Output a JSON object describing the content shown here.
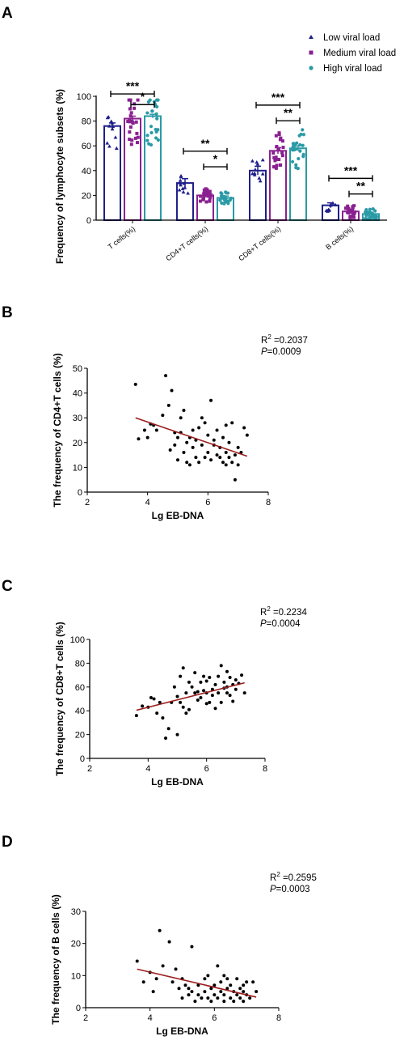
{
  "panels": {
    "A": {
      "letter": "A",
      "chart_data": {
        "type": "bar",
        "title": "",
        "ylabel": "Frequency of lymphocyte subsets (%)",
        "ylim": [
          0,
          100
        ],
        "yticks": [
          "0",
          "20",
          "40",
          "60",
          "80",
          "100"
        ],
        "categories": [
          "T cells(%)",
          "CD4+T cells(%)",
          "CD8+T cells(%)",
          "B cells(%)"
        ],
        "series": [
          {
            "name": "Low viral load",
            "color": "#1f1f8a",
            "marker": "triangle",
            "values": [
              76,
              30,
              40,
              12
            ],
            "sem": [
              2.5,
              3.5,
              3.5,
              2
            ]
          },
          {
            "name": "Medium viral load",
            "color": "#8a2090",
            "marker": "square",
            "values": [
              82,
              20,
              56,
              7
            ],
            "sem": [
              2,
              1.5,
              2.5,
              1
            ]
          },
          {
            "name": "High viral load",
            "color": "#2a9aa6",
            "marker": "circle",
            "values": [
              84,
              18,
              58,
              5
            ],
            "sem": [
              1.5,
              1.5,
              2,
              0.6
            ]
          }
        ],
        "significance": [
          {
            "category": "T cells(%)",
            "label": "***",
            "from": 0,
            "to": 2
          },
          {
            "category": "T cells(%)",
            "label": "*",
            "from": 1,
            "to": 2
          },
          {
            "category": "CD4+T cells(%)",
            "label": "**",
            "from": 0,
            "to": 2
          },
          {
            "category": "CD4+T cells(%)",
            "label": "*",
            "from": 1,
            "to": 2
          },
          {
            "category": "CD8+T cells(%)",
            "label": "***",
            "from": 0,
            "to": 2
          },
          {
            "category": "CD8+T cells(%)",
            "label": "**",
            "from": 1,
            "to": 2
          },
          {
            "category": "B cells(%)",
            "label": "***",
            "from": 0,
            "to": 2
          },
          {
            "category": "B cells(%)",
            "label": "**",
            "from": 1,
            "to": 2
          }
        ],
        "legend": "top-right"
      }
    },
    "B": {
      "letter": "B",
      "r2_label": "R",
      "r2_sup": "2",
      "r2_value": " =0.2037",
      "p_label": "P",
      "p_value": "=0.0009",
      "chart_data": {
        "type": "scatter",
        "xlabel": "Lg EB-DNA",
        "ylabel": "The frequency of CD4+T cells (%)",
        "xlim": [
          2,
          8
        ],
        "ylim": [
          0,
          50
        ],
        "xticks": [
          "2",
          "4",
          "6",
          "8"
        ],
        "yticks": [
          "0",
          "10",
          "20",
          "30",
          "40",
          "50"
        ],
        "fit": {
          "x": [
            3.6,
            7.3
          ],
          "y": [
            30,
            14.5
          ],
          "color": "#9b1c1c"
        },
        "points": [
          [
            3.6,
            43.5
          ],
          [
            3.7,
            21.5
          ],
          [
            3.9,
            25
          ],
          [
            4.0,
            22
          ],
          [
            4.1,
            27.5
          ],
          [
            4.2,
            27
          ],
          [
            4.3,
            25
          ],
          [
            4.5,
            31
          ],
          [
            4.6,
            47
          ],
          [
            4.7,
            35
          ],
          [
            4.75,
            17
          ],
          [
            4.8,
            41
          ],
          [
            4.9,
            24
          ],
          [
            4.9,
            19
          ],
          [
            5.0,
            22
          ],
          [
            5.1,
            30
          ],
          [
            5.1,
            24
          ],
          [
            5.2,
            33
          ],
          [
            5.2,
            16
          ],
          [
            5.3,
            20
          ],
          [
            5.3,
            12
          ],
          [
            5.4,
            22
          ],
          [
            5.5,
            18
          ],
          [
            5.5,
            25
          ],
          [
            5.6,
            21
          ],
          [
            5.6,
            14
          ],
          [
            5.7,
            26
          ],
          [
            5.7,
            12
          ],
          [
            5.8,
            30
          ],
          [
            5.8,
            19
          ],
          [
            5.9,
            28
          ],
          [
            5.9,
            14
          ],
          [
            6.0,
            23
          ],
          [
            6.0,
            16
          ],
          [
            6.1,
            37
          ],
          [
            6.1,
            13
          ],
          [
            6.2,
            19
          ],
          [
            6.2,
            21
          ],
          [
            6.3,
            15
          ],
          [
            6.3,
            25
          ],
          [
            6.4,
            14
          ],
          [
            6.4,
            18
          ],
          [
            6.5,
            22
          ],
          [
            6.5,
            12
          ],
          [
            6.6,
            16
          ],
          [
            6.6,
            27
          ],
          [
            6.7,
            20
          ],
          [
            6.7,
            14
          ],
          [
            6.8,
            12
          ],
          [
            6.8,
            28
          ],
          [
            6.9,
            5
          ],
          [
            6.9,
            15
          ],
          [
            7.0,
            18
          ],
          [
            7.0,
            11
          ],
          [
            7.1,
            16
          ],
          [
            7.2,
            26
          ],
          [
            7.3,
            23
          ],
          [
            5.0,
            13
          ],
          [
            5.4,
            11
          ],
          [
            6.6,
            11
          ]
        ]
      }
    },
    "C": {
      "letter": "C",
      "r2_label": "R",
      "r2_sup": "2",
      "r2_value": " =0.2234",
      "p_label": "P",
      "p_value": "=0.0004",
      "chart_data": {
        "type": "scatter",
        "xlabel": "Lg EB-DNA",
        "ylabel": "The frequency of CD8+T cells (%)",
        "xlim": [
          2,
          8
        ],
        "ylim": [
          0,
          100
        ],
        "xticks": [
          "2",
          "4",
          "6",
          "8"
        ],
        "yticks": [
          "0",
          "20",
          "40",
          "60",
          "80",
          "100"
        ],
        "fit": {
          "x": [
            3.6,
            7.3
          ],
          "y": [
            40.5,
            63.5
          ],
          "color": "#9b1c1c"
        },
        "points": [
          [
            3.6,
            36
          ],
          [
            3.8,
            44
          ],
          [
            4.0,
            43
          ],
          [
            4.1,
            51
          ],
          [
            4.2,
            50
          ],
          [
            4.3,
            38
          ],
          [
            4.4,
            47
          ],
          [
            4.5,
            34
          ],
          [
            4.6,
            17
          ],
          [
            4.7,
            25
          ],
          [
            4.8,
            47
          ],
          [
            4.9,
            60
          ],
          [
            5.0,
            52
          ],
          [
            5.0,
            20
          ],
          [
            5.1,
            47
          ],
          [
            5.1,
            69
          ],
          [
            5.2,
            76
          ],
          [
            5.2,
            43
          ],
          [
            5.3,
            55
          ],
          [
            5.4,
            64
          ],
          [
            5.4,
            41
          ],
          [
            5.5,
            60
          ],
          [
            5.6,
            55
          ],
          [
            5.6,
            72
          ],
          [
            5.7,
            49
          ],
          [
            5.7,
            56
          ],
          [
            5.8,
            64
          ],
          [
            5.8,
            51
          ],
          [
            5.9,
            69
          ],
          [
            5.9,
            57
          ],
          [
            6.0,
            65
          ],
          [
            6.0,
            55
          ],
          [
            6.1,
            68
          ],
          [
            6.1,
            47
          ],
          [
            6.2,
            58
          ],
          [
            6.2,
            53
          ],
          [
            6.3,
            62
          ],
          [
            6.3,
            42
          ],
          [
            6.4,
            55
          ],
          [
            6.4,
            69
          ],
          [
            6.5,
            78
          ],
          [
            6.5,
            47
          ],
          [
            6.6,
            59
          ],
          [
            6.6,
            64
          ],
          [
            6.7,
            55
          ],
          [
            6.7,
            73
          ],
          [
            6.8,
            68
          ],
          [
            6.8,
            53
          ],
          [
            6.9,
            48
          ],
          [
            6.9,
            62
          ],
          [
            7.0,
            66
          ],
          [
            7.0,
            58
          ],
          [
            7.1,
            63
          ],
          [
            7.2,
            70
          ],
          [
            7.3,
            55
          ],
          [
            5.3,
            38
          ],
          [
            6.0,
            46
          ],
          [
            6.7,
            60
          ]
        ]
      }
    },
    "D": {
      "letter": "D",
      "r2_label": "R",
      "r2_sup": "2",
      "r2_value": " =0.2595",
      "p_label": "P",
      "p_value": "=0.0003",
      "chart_data": {
        "type": "scatter",
        "xlabel": "Lg EB-DNA",
        "ylabel": "The frequency of B cells (%)",
        "xlim": [
          2,
          8
        ],
        "ylim": [
          0,
          30
        ],
        "xticks": [
          "2",
          "4",
          "6",
          "8"
        ],
        "yticks": [
          "0",
          "10",
          "20",
          "30"
        ],
        "fit": {
          "x": [
            3.6,
            7.3
          ],
          "y": [
            12,
            3.3
          ],
          "color": "#9b1c1c"
        },
        "points": [
          [
            3.6,
            14.5
          ],
          [
            3.8,
            8
          ],
          [
            4.0,
            11
          ],
          [
            4.1,
            5
          ],
          [
            4.2,
            9
          ],
          [
            4.3,
            24
          ],
          [
            4.4,
            13
          ],
          [
            4.6,
            20.5
          ],
          [
            4.7,
            8
          ],
          [
            4.8,
            12
          ],
          [
            4.9,
            6
          ],
          [
            5.0,
            9
          ],
          [
            5.0,
            3
          ],
          [
            5.1,
            7
          ],
          [
            5.2,
            6
          ],
          [
            5.3,
            19
          ],
          [
            5.3,
            5
          ],
          [
            5.4,
            2
          ],
          [
            5.5,
            7
          ],
          [
            5.5,
            4
          ],
          [
            5.6,
            3
          ],
          [
            5.7,
            5
          ],
          [
            5.7,
            9
          ],
          [
            5.8,
            3
          ],
          [
            5.9,
            6
          ],
          [
            5.9,
            2
          ],
          [
            6.0,
            4
          ],
          [
            6.0,
            7
          ],
          [
            6.1,
            13
          ],
          [
            6.1,
            3
          ],
          [
            6.2,
            5
          ],
          [
            6.2,
            8
          ],
          [
            6.3,
            4
          ],
          [
            6.3,
            2
          ],
          [
            6.4,
            9
          ],
          [
            6.4,
            6
          ],
          [
            6.5,
            3
          ],
          [
            6.5,
            7
          ],
          [
            6.6,
            5
          ],
          [
            6.6,
            2
          ],
          [
            6.7,
            9
          ],
          [
            6.7,
            4
          ],
          [
            6.8,
            6
          ],
          [
            6.8,
            3
          ],
          [
            6.9,
            2
          ],
          [
            6.9,
            7
          ],
          [
            7.0,
            4
          ],
          [
            7.0,
            8
          ],
          [
            7.1,
            3
          ],
          [
            7.2,
            8
          ],
          [
            7.3,
            5
          ],
          [
            5.2,
            4
          ],
          [
            5.8,
            10
          ],
          [
            6.3,
            10
          ],
          [
            6.9,
            5
          ]
        ]
      }
    }
  }
}
